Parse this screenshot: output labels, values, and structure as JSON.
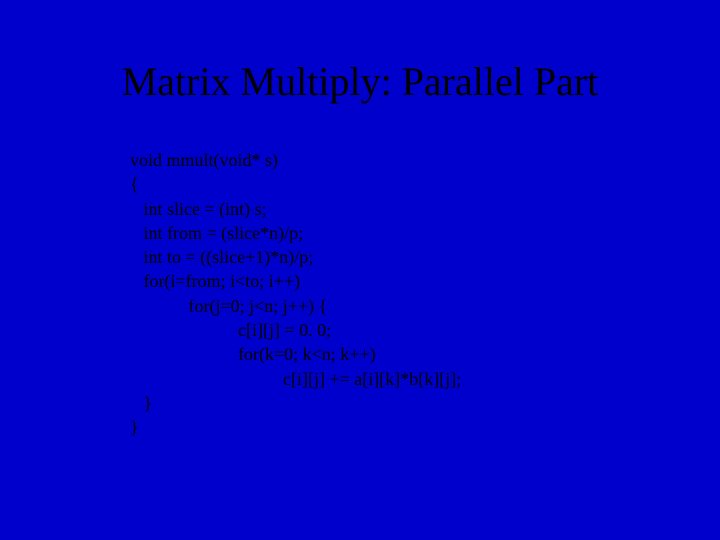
{
  "slide": {
    "background_color": "#0000cc",
    "text_color": "#000000",
    "title": "Matrix Multiply: Parallel Part",
    "title_fontsize": 40,
    "title_font": "Times New Roman",
    "code_fontsize": 18,
    "code_font": "Times New Roman",
    "code_lines": [
      "void mmult(void* s)",
      "{",
      "   int slice = (int) s;",
      "   int from = (slice*n)/p;",
      "   int to = ((slice+1)*n)/p;",
      "   for(i=from; i<to; i++)",
      "             for(j=0; j<n; j++) {",
      "                        c[i][j] = 0. 0;",
      "                        for(k=0; k<n; k++)",
      "                                  c[i][j] += a[i][k]*b[k][j];",
      "   }",
      "}"
    ]
  }
}
